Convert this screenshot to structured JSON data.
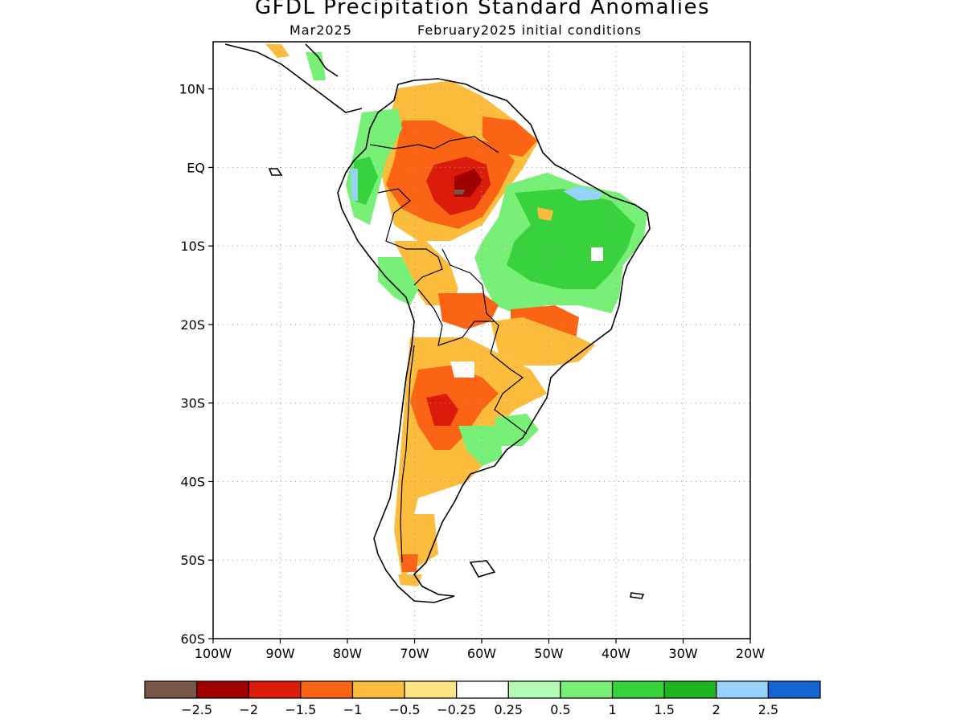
{
  "title": "GFDL Precipitation Standard Anomalies",
  "subtitle_left": "Mar2025",
  "subtitle_right": "February2025 initial conditions",
  "map": {
    "lon_range": [
      -100,
      -20
    ],
    "lat_range": [
      -60,
      16
    ],
    "x_ticks": [
      "100W",
      "90W",
      "80W",
      "70W",
      "60W",
      "50W",
      "40W",
      "30W",
      "20W"
    ],
    "y_ticks": [
      "10N",
      "EQ",
      "10S",
      "20S",
      "30S",
      "40S",
      "50S",
      "60S"
    ],
    "gridlines": "dotted"
  },
  "legend": {
    "colors": [
      "#7a5648",
      "#a00000",
      "#dc1c0a",
      "#fa6414",
      "#fcbc3c",
      "#fee482",
      "#ffffff",
      "#b4fab4",
      "#78f078",
      "#37d23c",
      "#1eb41e",
      "#96d2fa",
      "#1464d2"
    ],
    "labels": [
      "-2.5",
      "-2",
      "-1.5",
      "-1",
      "-0.5",
      "-0.25",
      "0.25",
      "0.5",
      "1",
      "1.5",
      "2",
      "2.5"
    ]
  }
}
